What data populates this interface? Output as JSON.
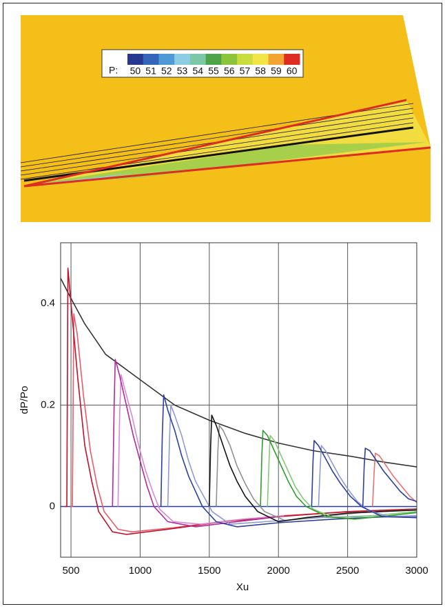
{
  "contour": {
    "colorbar_label": "P:",
    "levels": [
      50,
      51,
      52,
      53,
      54,
      55,
      56,
      57,
      58,
      59,
      60
    ],
    "colors": [
      "#26388f",
      "#3565b8",
      "#4f9ad6",
      "#8ccde3",
      "#7cc7a6",
      "#4fa34a",
      "#8cc43c",
      "#c9dd3f",
      "#f3e547",
      "#f2a532",
      "#dd2d22"
    ]
  },
  "chart_data": {
    "type": "line",
    "xlabel": "Xu",
    "ylabel": "dP/Po",
    "xlim": [
      425,
      3000
    ],
    "ylim": [
      -0.1,
      0.52
    ],
    "xticks": [
      500,
      1000,
      1500,
      2000,
      2500,
      3000
    ],
    "yticks": [
      0,
      0.2,
      0.4
    ],
    "grid": true,
    "series": [
      {
        "color": "#333333",
        "x": [
          425,
          500,
          600,
          750,
          1000,
          1250,
          1500,
          1750,
          2000,
          2250,
          2500,
          2750,
          3000
        ],
        "values": [
          0.45,
          0.41,
          0.36,
          0.3,
          0.25,
          0.2,
          0.17,
          0.145,
          0.125,
          0.11,
          0.1,
          0.088,
          0.078
        ]
      },
      {
        "color": "#2b3a9a",
        "x": [
          425,
          3000
        ],
        "values": [
          0,
          0
        ]
      },
      {
        "color": "#e85a6a",
        "x": [
          495,
          510,
          520,
          545,
          590,
          640,
          690,
          740,
          840,
          940,
          1240,
          1640,
          2040,
          2540,
          3000
        ],
        "values": [
          0,
          0,
          0.38,
          0.34,
          0.22,
          0.11,
          0.04,
          -0.01,
          -0.045,
          -0.05,
          -0.042,
          -0.028,
          -0.018,
          -0.01,
          -0.005
        ]
      },
      {
        "color": "#c0102a",
        "x": [
          455,
          470,
          478,
          500,
          550,
          600,
          650,
          700,
          800,
          900,
          1200,
          1600,
          2000,
          2500,
          3000
        ],
        "values": [
          0,
          0,
          0.47,
          0.4,
          0.25,
          0.12,
          0.05,
          -0.01,
          -0.05,
          -0.055,
          -0.045,
          -0.03,
          -0.02,
          -0.01,
          -0.005
        ]
      },
      {
        "color": "#d88ad0",
        "x": [
          840,
          852,
          862,
          890,
          940,
          990,
          1040,
          1090,
          1140,
          1240,
          1440,
          1740,
          2040
        ],
        "values": [
          0,
          0.18,
          0.26,
          0.23,
          0.18,
          0.12,
          0.07,
          0.03,
          -0.005,
          -0.03,
          -0.035,
          -0.025,
          -0.018
        ]
      },
      {
        "color": "#b3289c",
        "x": [
          800,
          812,
          820,
          850,
          900,
          950,
          1000,
          1050,
          1100,
          1200,
          1400,
          1700,
          2000
        ],
        "values": [
          0,
          0.2,
          0.29,
          0.26,
          0.2,
          0.14,
          0.09,
          0.04,
          0,
          -0.03,
          -0.04,
          -0.03,
          -0.02
        ]
      },
      {
        "color": "#8d9ad6",
        "x": [
          1200,
          1212,
          1222,
          1250,
          1300,
          1350,
          1400,
          1460,
          1520,
          1650,
          1900,
          2300,
          2700,
          3000
        ],
        "values": [
          0,
          0.13,
          0.2,
          0.18,
          0.14,
          0.09,
          0.05,
          0.02,
          -0.01,
          -0.035,
          -0.03,
          -0.022,
          -0.018,
          -0.02
        ]
      },
      {
        "color": "#2c3e9e",
        "x": [
          1150,
          1160,
          1170,
          1200,
          1250,
          1300,
          1350,
          1400,
          1450,
          1550,
          1700,
          2000,
          2400,
          2800,
          3000
        ],
        "values": [
          0,
          0.14,
          0.22,
          0.19,
          0.15,
          0.1,
          0.06,
          0.03,
          0,
          -0.03,
          -0.04,
          -0.032,
          -0.025,
          -0.02,
          -0.022
        ]
      },
      {
        "color": "#909090",
        "x": [
          1550,
          1562,
          1572,
          1600,
          1650,
          1700,
          1760,
          1820,
          1900,
          2050,
          2300,
          2600,
          3000
        ],
        "values": [
          0,
          0.11,
          0.16,
          0.15,
          0.12,
          0.08,
          0.045,
          0.015,
          -0.01,
          -0.028,
          -0.02,
          -0.012,
          -0.006
        ]
      },
      {
        "color": "#111111",
        "x": [
          1500,
          1510,
          1518,
          1550,
          1600,
          1650,
          1700,
          1760,
          1850,
          2000,
          2200,
          2500,
          3000
        ],
        "values": [
          0,
          0.12,
          0.18,
          0.16,
          0.12,
          0.08,
          0.05,
          0.02,
          -0.01,
          -0.03,
          -0.022,
          -0.013,
          -0.007
        ]
      },
      {
        "color": "#84c878",
        "x": [
          1920,
          1932,
          1940,
          1970,
          2020,
          2070,
          2120,
          2180,
          2250,
          2400,
          2600,
          3000
        ],
        "values": [
          0,
          0.09,
          0.14,
          0.13,
          0.1,
          0.07,
          0.04,
          0.015,
          -0.005,
          -0.022,
          -0.02,
          -0.01
        ]
      },
      {
        "color": "#2e9e2a",
        "x": [
          1870,
          1880,
          1888,
          1920,
          1970,
          2020,
          2070,
          2130,
          2200,
          2350,
          2550,
          2800,
          3000
        ],
        "values": [
          0,
          0.1,
          0.15,
          0.14,
          0.11,
          0.08,
          0.05,
          0.02,
          0,
          -0.02,
          -0.025,
          -0.018,
          -0.012
        ]
      },
      {
        "color": "#8d9ad6",
        "x": [
          2290,
          2302,
          2310,
          2340,
          2390,
          2440,
          2500,
          2570,
          2650,
          2800,
          3000
        ],
        "values": [
          0,
          0.08,
          0.12,
          0.11,
          0.085,
          0.06,
          0.035,
          0.01,
          -0.008,
          -0.02,
          -0.018
        ]
      },
      {
        "color": "#2c3e9e",
        "x": [
          2240,
          2250,
          2258,
          2290,
          2340,
          2390,
          2450,
          2520,
          2600,
          2750,
          3000
        ],
        "values": [
          0,
          0.09,
          0.13,
          0.12,
          0.095,
          0.07,
          0.045,
          0.02,
          0,
          -0.02,
          -0.022
        ]
      },
      {
        "color": "#e87070",
        "x": [
          2680,
          2692,
          2700,
          2730,
          2780,
          2830,
          2890,
          2950,
          3000
        ],
        "values": [
          0,
          0.07,
          0.105,
          0.1,
          0.08,
          0.06,
          0.04,
          0.02,
          0.008
        ]
      },
      {
        "color": "#2c3e9e",
        "x": [
          2610,
          2620,
          2628,
          2660,
          2710,
          2760,
          2820,
          2880,
          2940,
          3000
        ],
        "values": [
          0,
          0.08,
          0.115,
          0.11,
          0.09,
          0.07,
          0.05,
          0.03,
          0.015,
          0.01
        ]
      }
    ]
  }
}
